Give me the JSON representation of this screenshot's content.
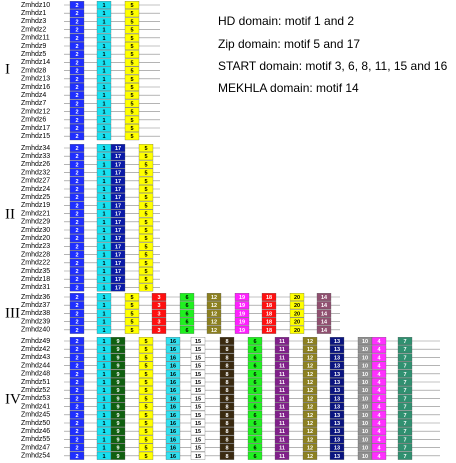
{
  "legend": [
    "HD domain: motif 1 and 2",
    "Zip domain: motif 5 and 17",
    "START domain: motif 3, 6, 8, 11, 15 and 16",
    "MEKHLA domain: motif 14"
  ],
  "groups": [
    {
      "label": "I",
      "genes": [
        "Zmhdz10",
        "Zmhdz1",
        "Zmhdz3",
        "Zmhdz2",
        "Zmhdz11",
        "Zmhdz9",
        "Zmhdz5",
        "Zmhdz14",
        "Zmhdz8",
        "Zmhdz13",
        "Zmhdz16",
        "Zmhdz4",
        "Zmhdz7",
        "Zmhdz12",
        "Zmhdz6",
        "Zmhdz17",
        "Zmhdz15"
      ],
      "motifs": [
        {
          "label": "2",
          "color": "#1f2fff"
        },
        {
          "label": "1",
          "color": "#18e0f0"
        },
        {
          "label": "5",
          "color": "#ffff00"
        }
      ]
    },
    {
      "label": "II",
      "genes": [
        "Zmhdz34",
        "Zmhdz33",
        "Zmhdz26",
        "Zmhdz32",
        "Zmhdz27",
        "Zmhdz24",
        "Zmhdz25",
        "Zmhdz19",
        "Zmhdz21",
        "Zmhdz29",
        "Zmhdz30",
        "Zmhdz20",
        "Zmhdz23",
        "Zmhdz28",
        "Zmhdz22",
        "Zmhdz35",
        "Zmhdz18",
        "Zmhdz31"
      ],
      "motifs": [
        {
          "label": "2",
          "color": "#1f2fff"
        },
        {
          "label": "1",
          "color": "#18e0f0"
        },
        {
          "label": "17",
          "color": "#0a1aa8"
        },
        {
          "label": "5",
          "color": "#ffff00"
        }
      ]
    },
    {
      "label": "III",
      "genes": [
        "Zmhdz36",
        "Zmhdz37",
        "Zmhdz38",
        "Zmhdz39",
        "Zmhdz40"
      ],
      "motifs": [
        {
          "label": "2",
          "color": "#1f2fff"
        },
        {
          "label": "1",
          "color": "#18e0f0"
        },
        {
          "label": "5",
          "color": "#ffff00"
        },
        {
          "label": "3",
          "color": "#ff1010"
        },
        {
          "label": "6",
          "color": "#20f020"
        },
        {
          "label": "12",
          "color": "#8c8020"
        },
        {
          "label": "19",
          "color": "#ff20ff"
        },
        {
          "label": "18",
          "color": "#ff1010"
        },
        {
          "label": "20",
          "color": "#ffff00"
        },
        {
          "label": "14",
          "color": "#905070"
        }
      ]
    },
    {
      "label": "IV",
      "genes": [
        "Zmhdz49",
        "Zmhdz42",
        "Zmhdz43",
        "Zmhdz44",
        "Zmhdz48",
        "Zmhdz51",
        "Zmhdz52",
        "Zmhdz53",
        "Zmhdz41",
        "Zmhdz45",
        "Zmhdz50",
        "Zmhdz46",
        "Zmhdz55",
        "Zmhdz47",
        "Zmhdz54"
      ],
      "motifs": [
        {
          "label": "2",
          "color": "#1f2fff"
        },
        {
          "label": "1",
          "color": "#18e0f0"
        },
        {
          "label": "9",
          "color": "#106010"
        },
        {
          "label": "5",
          "color": "#ffff00"
        },
        {
          "label": "16",
          "color": "#30e0f0"
        },
        {
          "label": "15",
          "color": "#ffffff"
        },
        {
          "label": "8",
          "color": "#3a2a10"
        },
        {
          "label": "6",
          "color": "#20f020"
        },
        {
          "label": "11",
          "color": "#80208a"
        },
        {
          "label": "12",
          "color": "#8c8020"
        },
        {
          "label": "13",
          "color": "#0a1480"
        },
        {
          "label": "10",
          "color": "#909090"
        },
        {
          "label": "4",
          "color": "#ff30ff"
        },
        {
          "label": "7",
          "color": "#309070"
        }
      ]
    }
  ]
}
